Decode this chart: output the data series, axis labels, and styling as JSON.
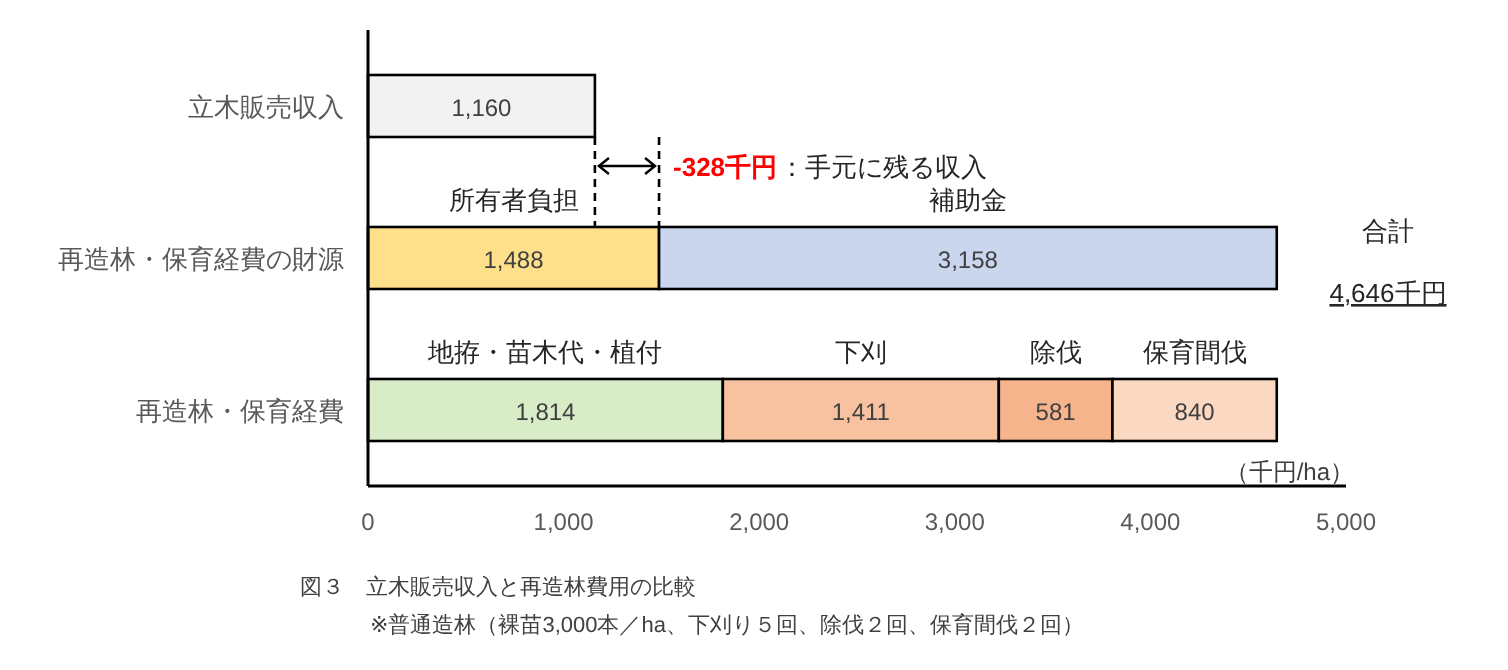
{
  "chart_data": {
    "type": "bar",
    "orientation": "horizontal",
    "stacked": true,
    "categories": [
      "立木販売収入",
      "再造林・保育経費の財源",
      "再造林・保育経費"
    ],
    "series": [
      {
        "color": "#f2f2f2",
        "values": [
          1160,
          null,
          null
        ],
        "value_labels": [
          "1,160",
          null,
          null
        ]
      },
      {
        "name": "所有者負担",
        "color": "#ffe08a",
        "values": [
          null,
          1488,
          null
        ],
        "value_labels": [
          null,
          "1,488",
          null
        ]
      },
      {
        "name": "補助金",
        "color": "#c9d6ee",
        "values": [
          null,
          3158,
          null
        ],
        "value_labels": [
          null,
          "3,158",
          null
        ]
      },
      {
        "name": "地拵・苗木代・植付",
        "color": "#d9ecc8",
        "values": [
          null,
          null,
          1814
        ],
        "value_labels": [
          null,
          null,
          "1,814"
        ]
      },
      {
        "name": "下刈",
        "color": "#f8c2a0",
        "values": [
          null,
          null,
          1411
        ],
        "value_labels": [
          null,
          null,
          "1,411"
        ]
      },
      {
        "name": "除伐",
        "color": "#f6b48c",
        "values": [
          null,
          null,
          581
        ],
        "value_labels": [
          null,
          null,
          "581"
        ]
      },
      {
        "name": "保育間伐",
        "color": "#fbd8c2",
        "values": [
          null,
          null,
          840
        ],
        "value_labels": [
          null,
          null,
          "840"
        ]
      }
    ],
    "totals": [
      null,
      "4,646千円",
      null
    ],
    "xlim": [
      0,
      5000
    ],
    "xticks": [
      0,
      {
        "value": 1000,
        "label": "1,000"
      },
      {
        "value": 2000,
        "label": "2,000"
      },
      {
        "value": 3000,
        "label": "3,000"
      },
      {
        "value": 4000,
        "label": "4,000"
      },
      {
        "value": 5000,
        "label": "5,000"
      }
    ],
    "xlabel": "（千円/ha）",
    "grid": false,
    "ref_lines": [
      {
        "axis": "x",
        "value": 1160,
        "line_style": "dashed",
        "color": "#000000"
      },
      {
        "axis": "x",
        "value": 1488,
        "line_style": "dashed",
        "color": "#000000"
      }
    ],
    "annotations": [
      "-328千円",
      "：手元に残る収入",
      "合計",
      "図３　立木販売収入と再造林費用の比較",
      "※普通造林（裸苗3,000本／ha、下刈り５回、除伐２回、保育間伐２回）"
    ]
  }
}
